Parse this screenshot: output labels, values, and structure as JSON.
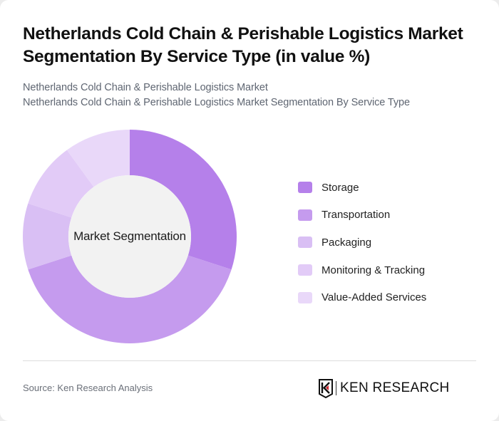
{
  "header": {
    "title": "Netherlands Cold Chain & Perishable Logistics Market Segmentation By Service Type (in value %)",
    "subtitle_line1": "Netherlands Cold Chain & Perishable Logistics Market",
    "subtitle_line2": "Netherlands Cold Chain & Perishable Logistics Market Segmentation By Service Type"
  },
  "chart": {
    "center_label": "Market Segmentation",
    "inner_color": "#f2f2f2"
  },
  "legend": {
    "items": [
      {
        "label": "Storage",
        "color": "#b580ea"
      },
      {
        "label": "Transportation",
        "color": "#c59bee"
      },
      {
        "label": "Packaging",
        "color": "#d9bff4"
      },
      {
        "label": "Monitoring & Tracking",
        "color": "#e2cbf7"
      },
      {
        "label": "Value-Added Services",
        "color": "#e9d8f9"
      }
    ]
  },
  "footer": {
    "source": "Source: Ken Research Analysis",
    "logo_text": "KEN RESEARCH"
  },
  "chart_data": {
    "type": "pie",
    "variant": "donut",
    "title": "Netherlands Cold Chain & Perishable Logistics Market Segmentation By Service Type (in value %)",
    "subtitle": "Netherlands Cold Chain & Perishable Logistics Market Segmentation By Service Type",
    "center_label": "Market Segmentation",
    "categories": [
      "Storage",
      "Transportation",
      "Packaging",
      "Monitoring & Tracking",
      "Value-Added Services"
    ],
    "values": [
      30,
      40,
      10,
      10,
      10
    ],
    "colors": [
      "#b580ea",
      "#c59bee",
      "#d9bff4",
      "#e2cbf7",
      "#e9d8f9"
    ],
    "unit": "%",
    "legend_position": "right",
    "start_angle": "12 o'clock, clockwise"
  }
}
